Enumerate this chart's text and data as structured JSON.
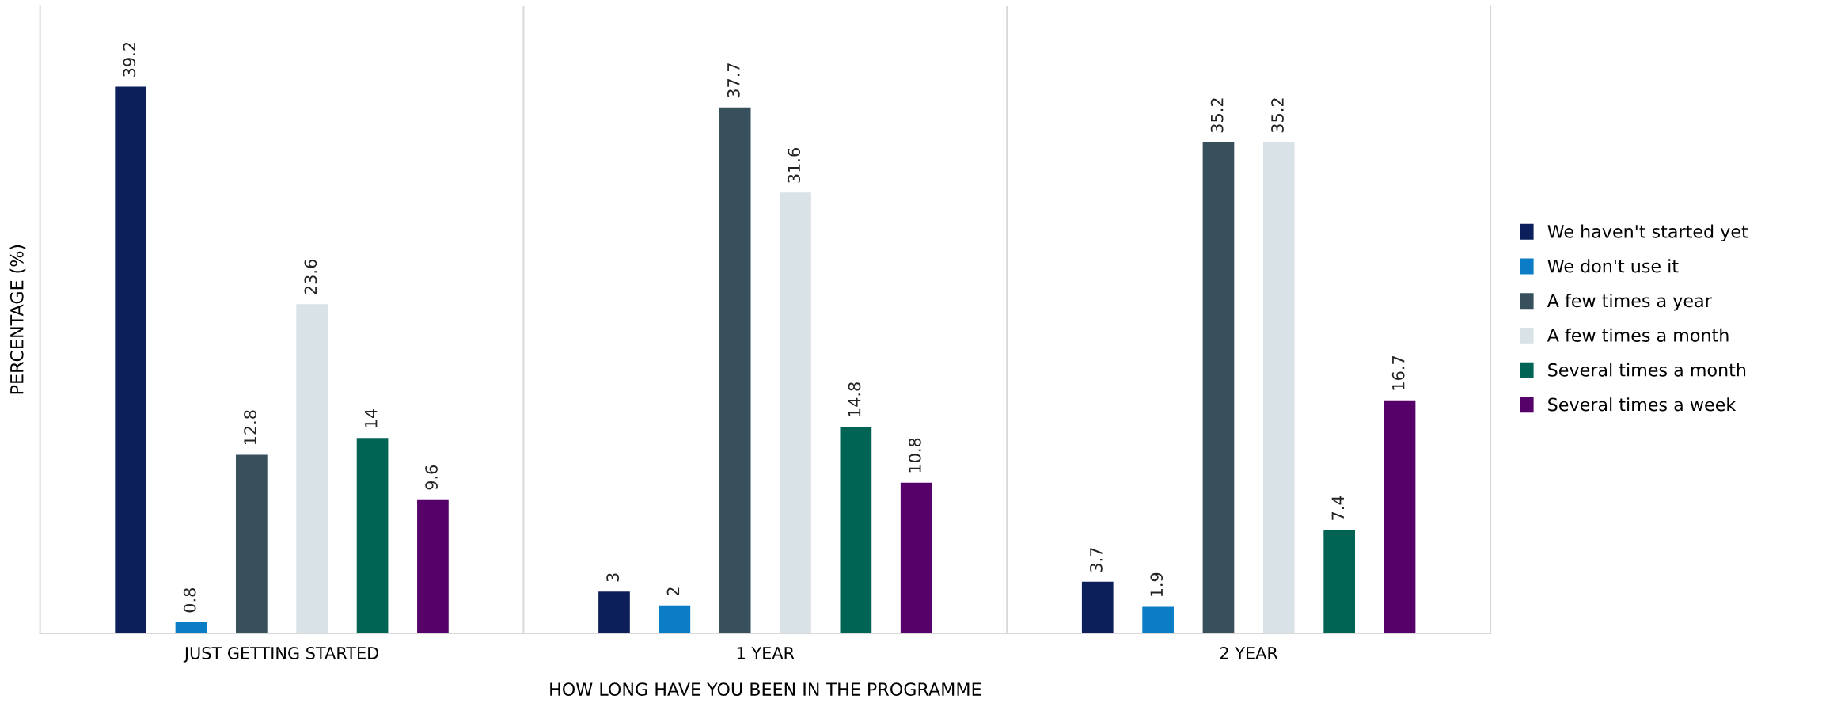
{
  "chart_data": {
    "type": "bar",
    "xlabel": "HOW LONG HAVE YOU BEEN IN THE PROGRAMME",
    "ylabel": "PERCENTAGE (%)",
    "categories": [
      "JUST GETTING STARTED",
      "1 YEAR",
      "2 YEAR"
    ],
    "series": [
      {
        "name": "We haven't started yet",
        "color": "#0c1f5b",
        "values": [
          39.2,
          3,
          3.7
        ]
      },
      {
        "name": "We don't use it",
        "color": "#0a7dc6",
        "values": [
          0.8,
          2,
          1.9
        ]
      },
      {
        "name": "A few times a year",
        "color": "#38505c",
        "values": [
          12.8,
          37.7,
          35.2
        ]
      },
      {
        "name": "A few times a month",
        "color": "#d9e2e7",
        "values": [
          23.6,
          31.6,
          35.2
        ]
      },
      {
        "name": "Several times a month",
        "color": "#006455",
        "values": [
          14,
          14.8,
          7.4
        ]
      },
      {
        "name": "Several times a week",
        "color": "#560069",
        "values": [
          9.6,
          10.8,
          16.7
        ]
      }
    ],
    "ylim": [
      0,
      45
    ],
    "tick_labels": "x",
    "data_labels": true,
    "legend": "right",
    "grid": false
  }
}
